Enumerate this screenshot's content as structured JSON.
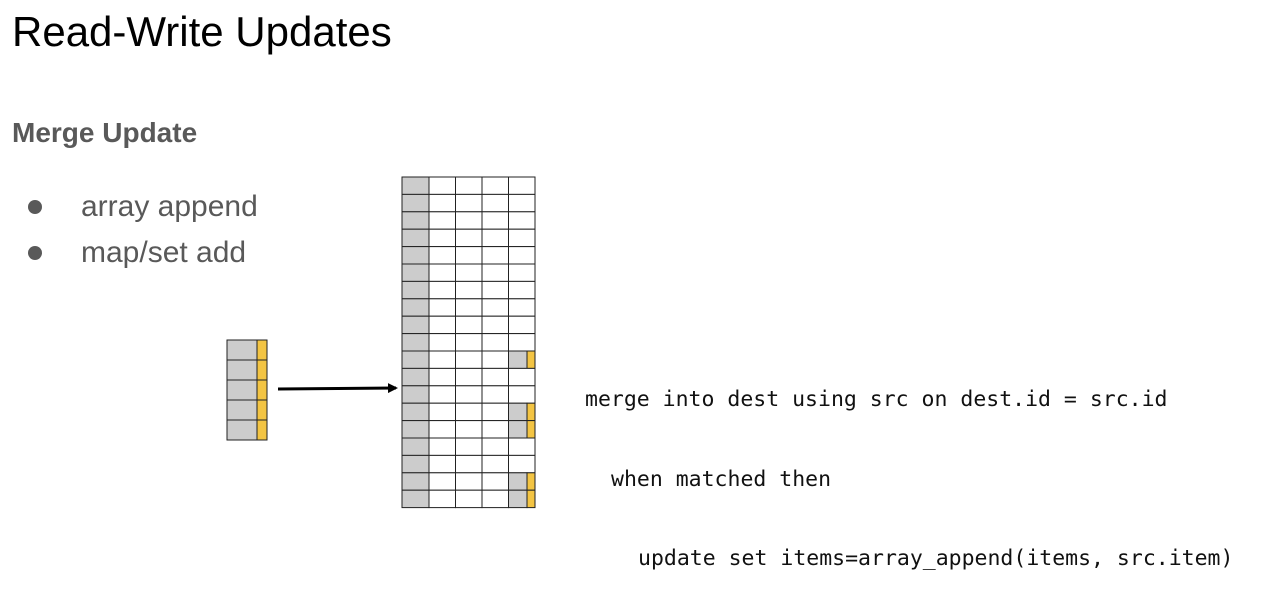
{
  "slide": {
    "title": "Read-Write Updates",
    "section_heading": "Merge Update",
    "bullets": [
      "array append",
      "map/set add"
    ]
  },
  "code": {
    "lines": [
      "merge into dest using src on dest.id = src.id",
      "when matched then",
      "update set items=array_append(items, src.item)"
    ]
  },
  "diagram": {
    "colors": {
      "key_fill": "#cccccc",
      "append_fill": "#f3c443",
      "cell_fill": "#ffffff",
      "grid_stroke": "#222222",
      "arrow": "#000000"
    },
    "source_table": {
      "rows": 5
    },
    "dest_table": {
      "rows": 19,
      "value_columns": 4,
      "updated_rows": [
        10,
        13,
        14,
        17,
        18
      ]
    }
  }
}
